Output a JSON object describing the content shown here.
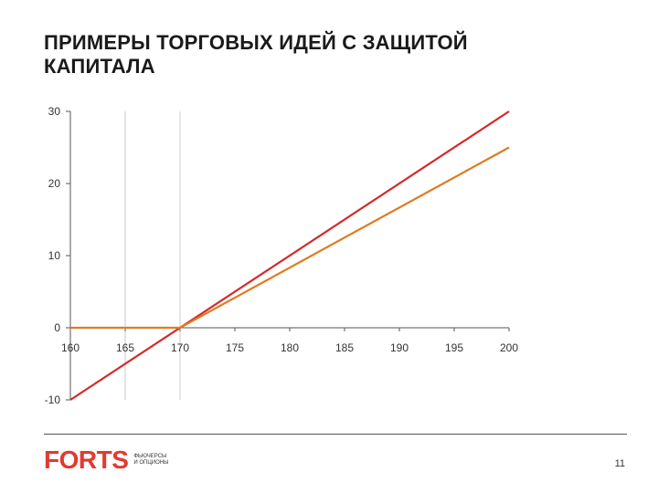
{
  "slide": {
    "title_lines": [
      "ПРИМЕРЫ ТОРГОВЫХ ИДЕЙ С ЗАЩИТОЙ",
      "КАПИТАЛА"
    ],
    "page_number": "11"
  },
  "logo": {
    "word": "FORTS",
    "sub_lines": [
      "ФЬЮЧЕРСЫ",
      "И ОПЦИОНЫ"
    ],
    "color": "#e23a2f"
  },
  "chart_data": {
    "type": "line",
    "title": "",
    "xlabel": "",
    "ylabel": "",
    "xlim": [
      160,
      200
    ],
    "ylim": [
      -10,
      30
    ],
    "x_ticks": [
      160,
      165,
      170,
      175,
      180,
      185,
      190,
      195,
      200
    ],
    "y_ticks": [
      -10,
      0,
      10,
      20,
      30
    ],
    "x_tick_labels": [
      "160",
      "165",
      "170",
      "175",
      "180",
      "185",
      "190",
      "195",
      "200"
    ],
    "y_tick_labels": [
      "-10",
      "0",
      "10",
      "20",
      "30"
    ],
    "vertical_guides": [
      165,
      170
    ],
    "grid": false,
    "legend": "none",
    "series": [
      {
        "color": "#d42a2a",
        "points": [
          [
            160,
            -10
          ],
          [
            200,
            30
          ]
        ]
      },
      {
        "color": "#e07b1f",
        "points": [
          [
            160,
            0
          ],
          [
            170,
            0
          ],
          [
            200,
            25
          ]
        ]
      }
    ]
  }
}
